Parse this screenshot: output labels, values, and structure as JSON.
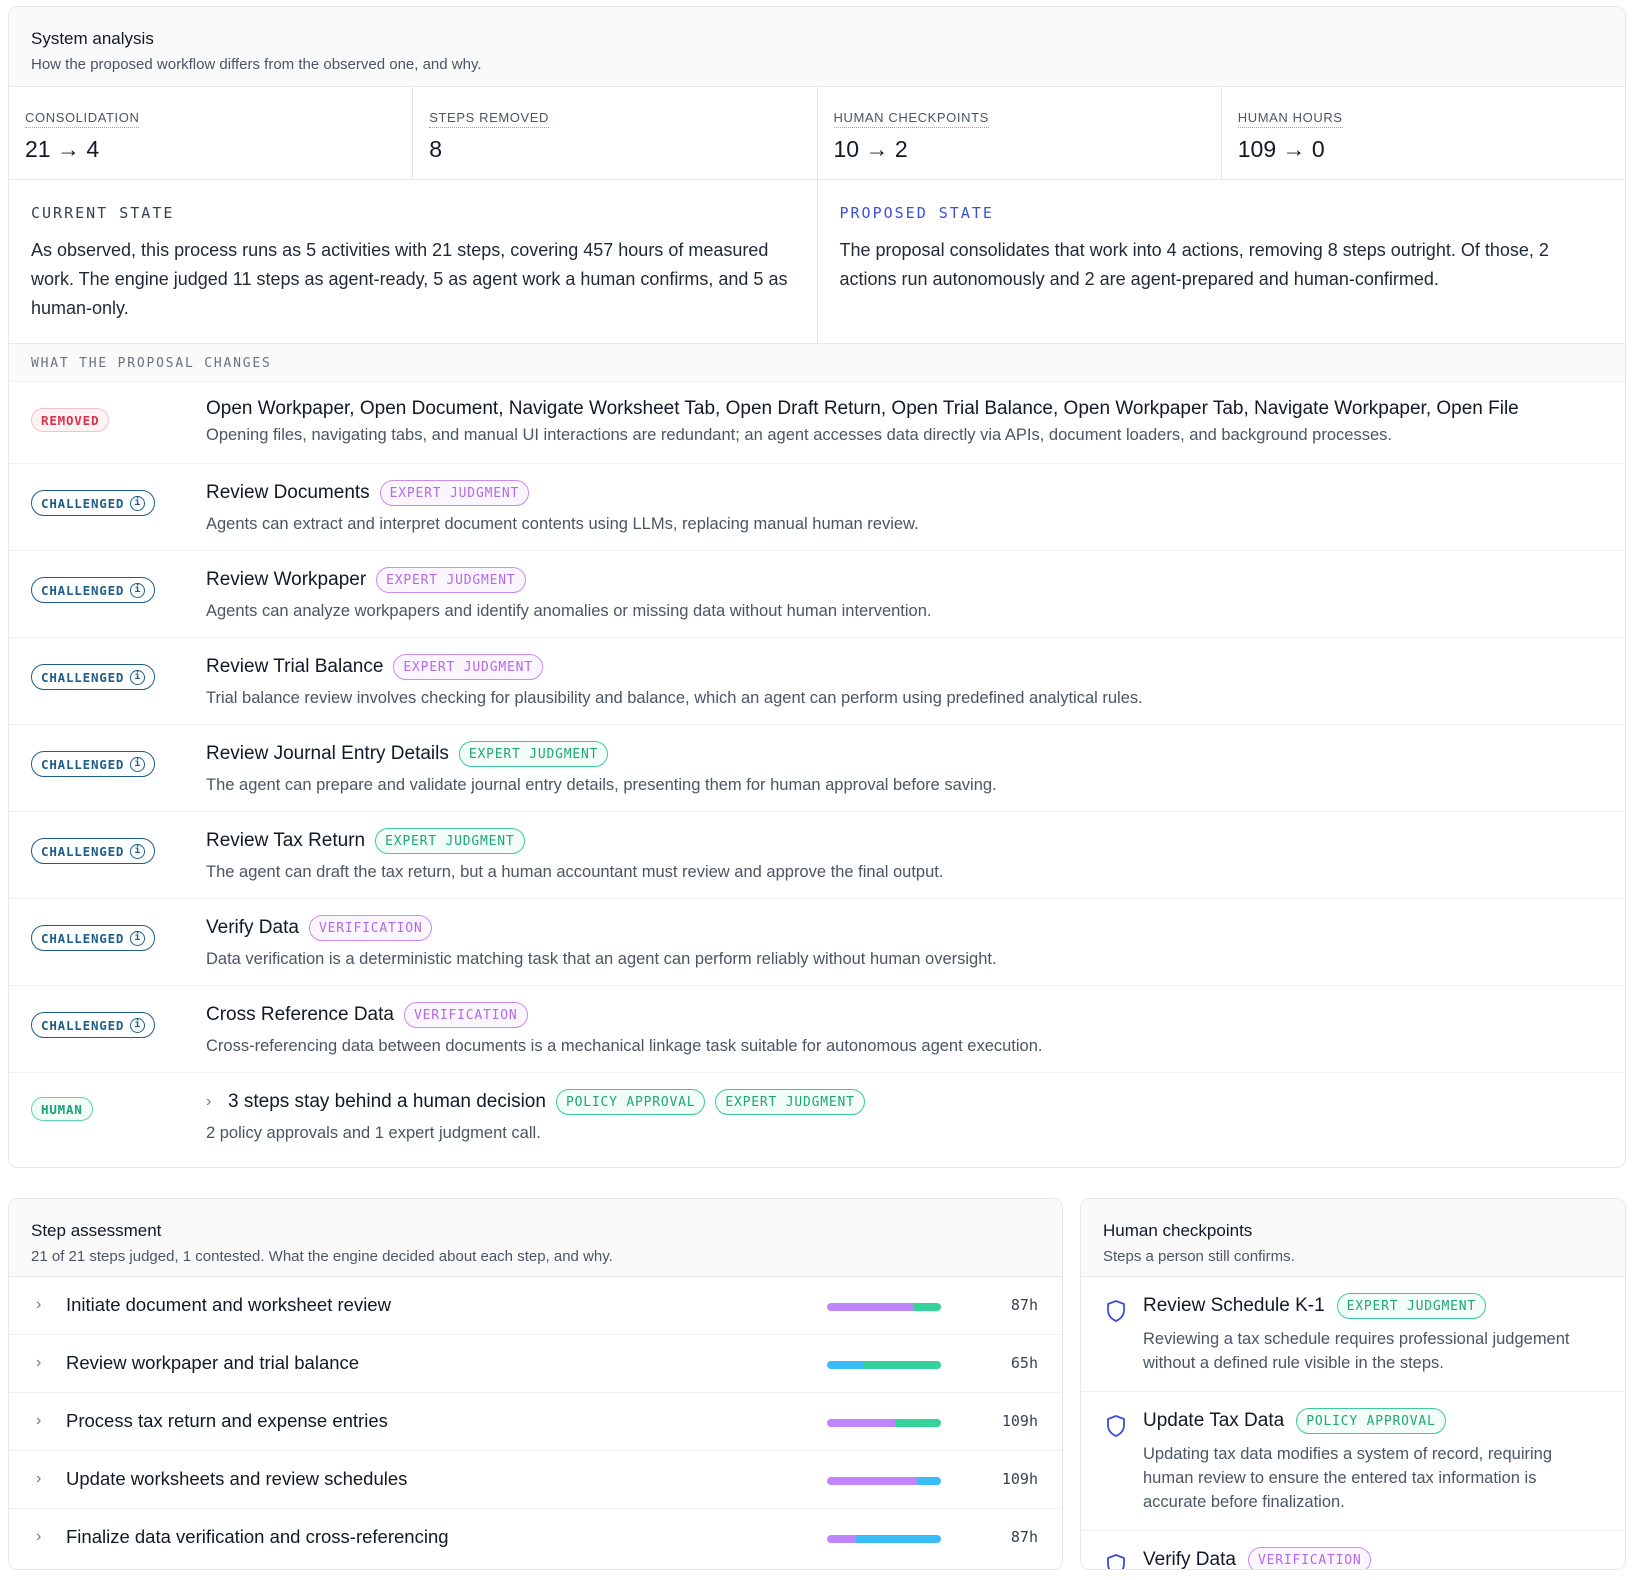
{
  "system_analysis": {
    "title": "System analysis",
    "subtitle": "How the proposed workflow differs from the observed one, and why.",
    "stats": [
      {
        "label": "CONSOLIDATION",
        "value": "21 → 4"
      },
      {
        "label": "STEPS REMOVED",
        "value": "8"
      },
      {
        "label": "HUMAN CHECKPOINTS",
        "value": "10 → 2"
      },
      {
        "label": "HUMAN HOURS",
        "value": "109 → 0"
      }
    ],
    "current_state": {
      "label": "CURRENT STATE",
      "text": "As observed, this process runs as 5 activities with 21 steps, covering 457 hours of measured work. The engine judged 11 steps as agent-ready, 5 as agent work a human confirms, and 5 as human-only."
    },
    "proposed_state": {
      "label": "PROPOSED STATE",
      "text": "The proposal consolidates that work into 4 actions, removing 8 steps outright. Of those, 2 actions run autonomously and 2 are agent-prepared and human-confirmed."
    },
    "changes_header": "WHAT THE PROPOSAL CHANGES",
    "changes": [
      {
        "badge": "REMOVED",
        "badge_type": "removed",
        "title": "Open Workpaper, Open Document, Navigate Worksheet Tab, Open Draft Return, Open Trial Balance, Open Workpaper Tab, Navigate Workpaper, Open File",
        "tags": [],
        "desc": "Opening files, navigating tabs, and manual UI interactions are redundant; an agent accesses data directly via APIs, document loaders, and background processes."
      },
      {
        "badge": "CHALLENGED",
        "badge_type": "challenged",
        "title": "Review Documents",
        "tags": [
          {
            "text": "EXPERT JUDGMENT",
            "color": "purple"
          }
        ],
        "desc": "Agents can extract and interpret document contents using LLMs, replacing manual human review."
      },
      {
        "badge": "CHALLENGED",
        "badge_type": "challenged",
        "title": "Review Workpaper",
        "tags": [
          {
            "text": "EXPERT JUDGMENT",
            "color": "purple"
          }
        ],
        "desc": "Agents can analyze workpapers and identify anomalies or missing data without human intervention."
      },
      {
        "badge": "CHALLENGED",
        "badge_type": "challenged",
        "title": "Review Trial Balance",
        "tags": [
          {
            "text": "EXPERT JUDGMENT",
            "color": "purple"
          }
        ],
        "desc": "Trial balance review involves checking for plausibility and balance, which an agent can perform using predefined analytical rules."
      },
      {
        "badge": "CHALLENGED",
        "badge_type": "challenged",
        "title": "Review Journal Entry Details",
        "tags": [
          {
            "text": "EXPERT JUDGMENT",
            "color": "green"
          }
        ],
        "desc": "The agent can prepare and validate journal entry details, presenting them for human approval before saving."
      },
      {
        "badge": "CHALLENGED",
        "badge_type": "challenged",
        "title": "Review Tax Return",
        "tags": [
          {
            "text": "EXPERT JUDGMENT",
            "color": "green"
          }
        ],
        "desc": "The agent can draft the tax return, but a human accountant must review and approve the final output."
      },
      {
        "badge": "CHALLENGED",
        "badge_type": "challenged",
        "title": "Verify Data",
        "tags": [
          {
            "text": "VERIFICATION",
            "color": "purple"
          }
        ],
        "desc": "Data verification is a deterministic matching task that an agent can perform reliably without human oversight."
      },
      {
        "badge": "CHALLENGED",
        "badge_type": "challenged",
        "title": "Cross Reference Data",
        "tags": [
          {
            "text": "VERIFICATION",
            "color": "purple"
          }
        ],
        "desc": "Cross-referencing data between documents is a mechanical linkage task suitable for autonomous agent execution."
      },
      {
        "badge": "HUMAN",
        "badge_type": "human",
        "title": "3 steps stay behind a human decision",
        "tags": [
          {
            "text": "POLICY APPROVAL",
            "color": "green"
          },
          {
            "text": "EXPERT JUDGMENT",
            "color": "green"
          }
        ],
        "desc": "2 policy approvals and 1 expert judgment call.",
        "expandable": true
      }
    ]
  },
  "step_assessment": {
    "title": "Step assessment",
    "subtitle": "21 of 21 steps judged, 1 contested. What the engine decided about each step, and why.",
    "rows": [
      {
        "name": "Initiate document and worksheet review",
        "hours": "87h",
        "segments": [
          {
            "fraction": 0.75,
            "color": "#c084fc"
          },
          {
            "fraction": 0.25,
            "color": "#34d399"
          }
        ]
      },
      {
        "name": "Review workpaper and trial balance",
        "hours": "65h",
        "segments": [
          {
            "fraction": 0.32,
            "color": "#38bdf8"
          },
          {
            "fraction": 0.68,
            "color": "#34d399"
          }
        ]
      },
      {
        "name": "Process tax return and expense entries",
        "hours": "109h",
        "segments": [
          {
            "fraction": 0.6,
            "color": "#c084fc"
          },
          {
            "fraction": 0.4,
            "color": "#34d399"
          }
        ]
      },
      {
        "name": "Update worksheets and review schedules",
        "hours": "109h",
        "segments": [
          {
            "fraction": 0.8,
            "color": "#c084fc"
          },
          {
            "fraction": 0.2,
            "color": "#38bdf8"
          }
        ]
      },
      {
        "name": "Finalize data verification and cross-referencing",
        "hours": "87h",
        "segments": [
          {
            "fraction": 0.25,
            "color": "#c084fc"
          },
          {
            "fraction": 0.75,
            "color": "#38bdf8"
          }
        ]
      }
    ]
  },
  "human_checkpoints": {
    "title": "Human checkpoints",
    "subtitle": "Steps a person still confirms.",
    "items": [
      {
        "title": "Review Schedule K-1",
        "tag": {
          "text": "EXPERT JUDGMENT",
          "color": "green"
        },
        "desc": "Reviewing a tax schedule requires professional judgement without a defined rule visible in the steps."
      },
      {
        "title": "Update Tax Data",
        "tag": {
          "text": "POLICY APPROVAL",
          "color": "green"
        },
        "desc": "Updating tax data modifies a system of record, requiring human review to ensure the entered tax information is accurate before finalization."
      },
      {
        "title": "Verify Data",
        "tag": {
          "text": "VERIFICATION",
          "color": "purple"
        },
        "desc": ""
      }
    ]
  }
}
